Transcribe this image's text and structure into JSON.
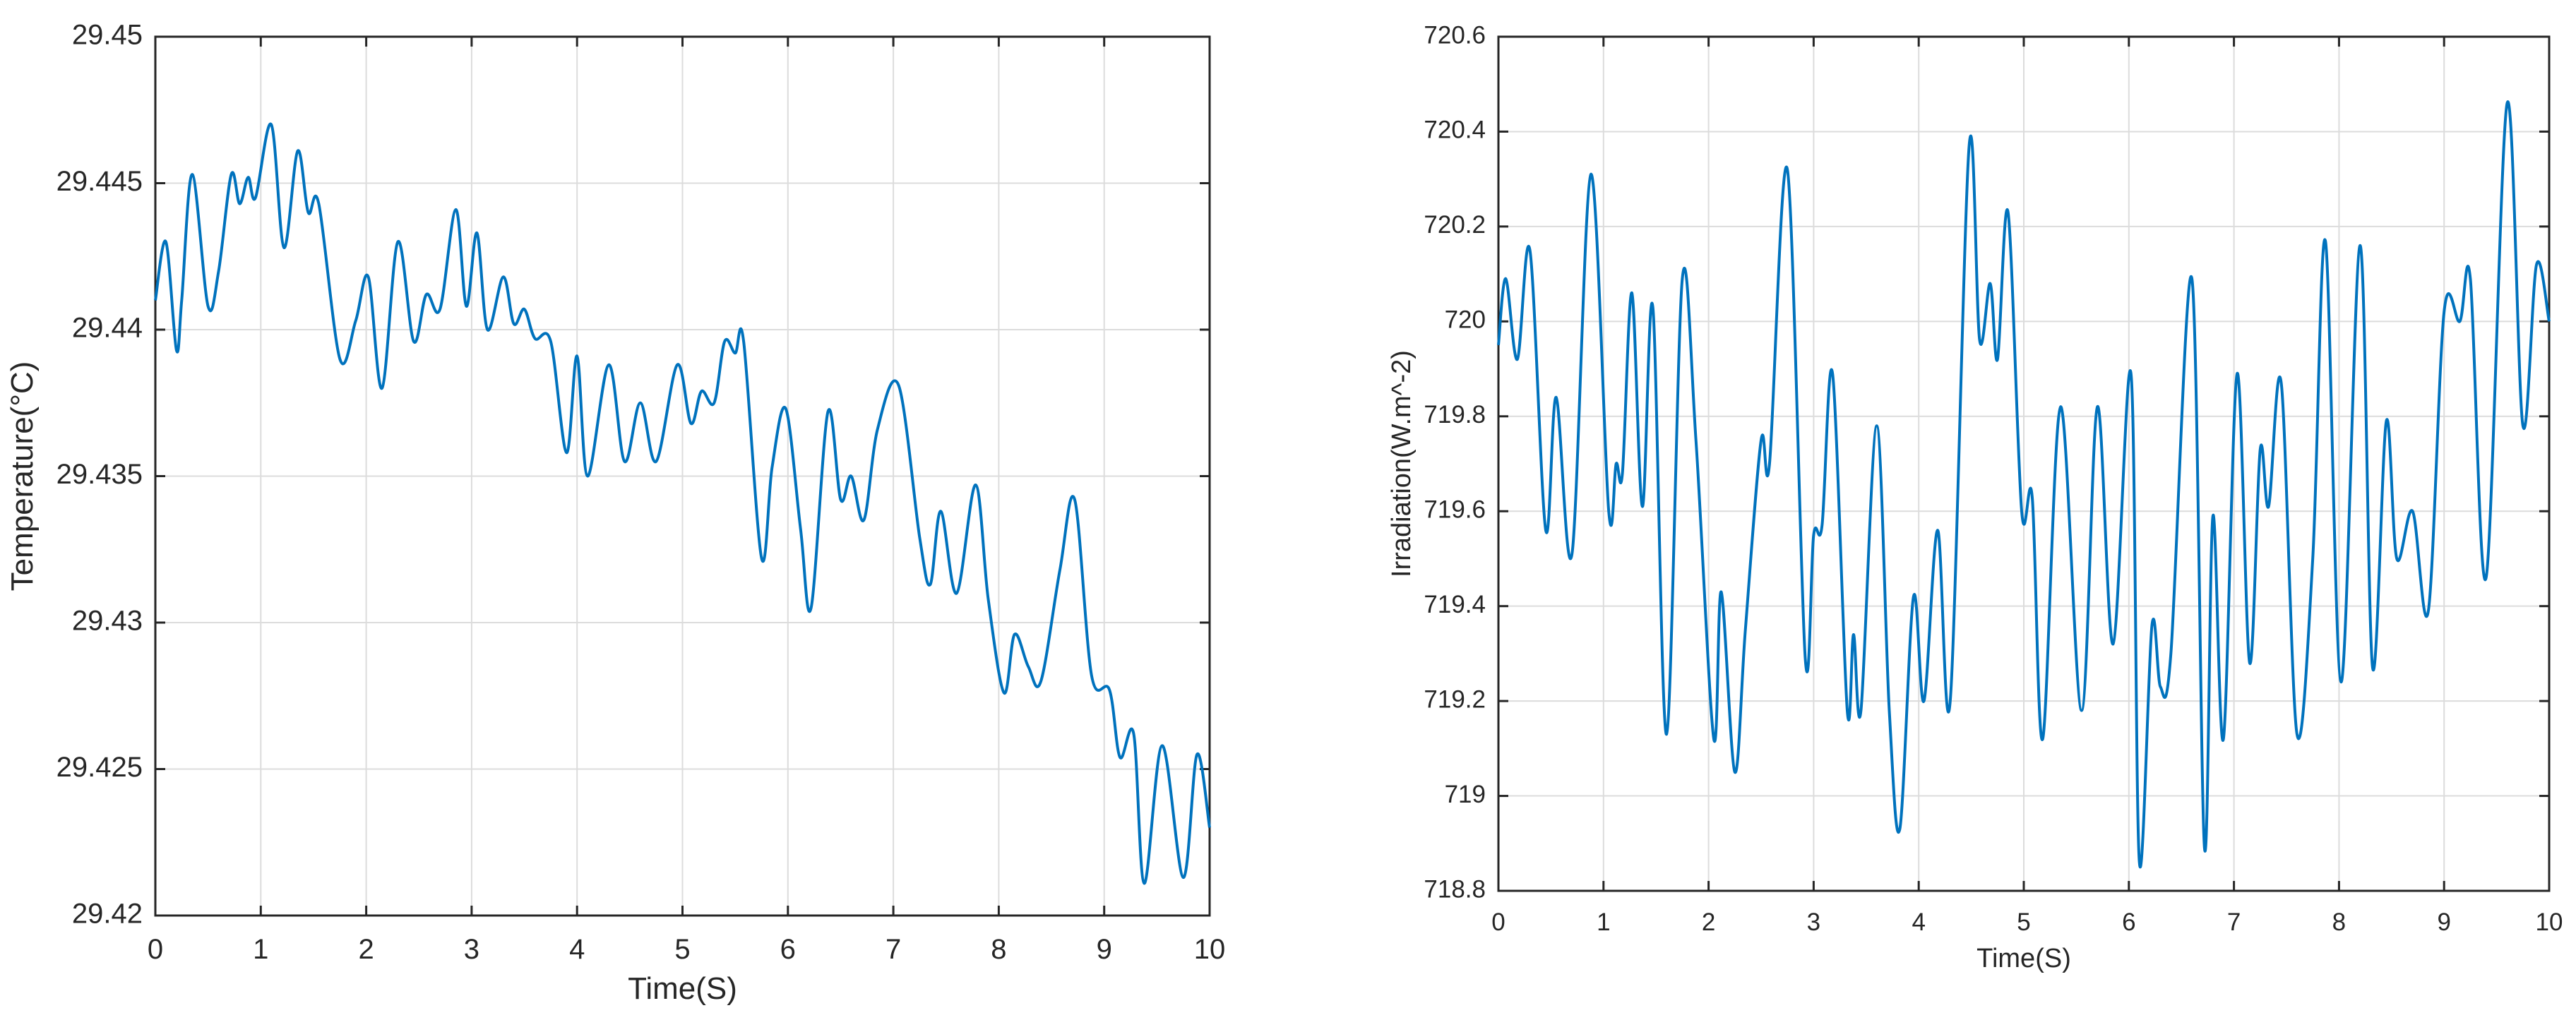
{
  "chart_data": [
    {
      "type": "line",
      "title": "",
      "xlabel": "Time(S)",
      "ylabel": "Temperature(°C)",
      "xlim": [
        0,
        10
      ],
      "ylim": [
        29.42,
        29.45
      ],
      "xticks": [
        0,
        1,
        2,
        3,
        4,
        5,
        6,
        7,
        8,
        9,
        10
      ],
      "xtick_labels": [
        "0",
        "1",
        "2",
        "3",
        "4",
        "5",
        "6",
        "7",
        "8",
        "9",
        "10"
      ],
      "yticks": [
        29.42,
        29.425,
        29.43,
        29.435,
        29.44,
        29.445,
        29.45
      ],
      "ytick_labels": [
        "29.42",
        "29.425",
        "29.43",
        "29.435",
        "29.44",
        "29.445",
        "29.45"
      ],
      "grid": true,
      "line_color": "#0072BD",
      "series": [
        {
          "x": [
            0.0,
            0.1,
            0.2,
            0.25,
            0.35,
            0.5,
            0.6,
            0.72,
            0.8,
            0.88,
            0.95,
            1.1,
            1.22,
            1.35,
            1.45,
            1.55,
            1.75,
            1.9,
            2.02,
            2.15,
            2.3,
            2.45,
            2.57,
            2.7,
            2.85,
            2.95,
            3.05,
            3.15,
            3.3,
            3.4,
            3.5,
            3.6,
            3.75,
            3.9,
            4.0,
            4.1,
            4.3,
            4.45,
            4.6,
            4.75,
            4.95,
            5.08,
            5.18,
            5.3,
            5.4,
            5.5,
            5.58,
            5.75,
            5.85,
            5.98,
            6.12,
            6.22,
            6.38,
            6.5,
            6.6,
            6.72,
            6.85,
            7.05,
            7.25,
            7.35,
            7.45,
            7.6,
            7.78,
            7.9,
            8.05,
            8.15,
            8.28,
            8.4,
            8.58,
            8.72,
            8.88,
            9.05,
            9.15,
            9.28,
            9.38,
            9.55,
            9.75,
            9.88,
            10.0
          ],
          "y": [
            29.441,
            29.443,
            29.4393,
            29.441,
            29.4453,
            29.4408,
            29.442,
            29.4453,
            29.4443,
            29.4452,
            29.4445,
            29.447,
            29.4428,
            29.4461,
            29.444,
            29.4443,
            29.439,
            29.4403,
            29.4418,
            29.438,
            29.443,
            29.4396,
            29.4412,
            29.4407,
            29.4441,
            29.4408,
            29.4433,
            29.44,
            29.4418,
            29.4402,
            29.4407,
            29.4397,
            29.4396,
            29.4358,
            29.4391,
            29.435,
            29.4388,
            29.4355,
            29.4375,
            29.4355,
            29.4388,
            29.4368,
            29.4379,
            29.4375,
            29.4396,
            29.4392,
            29.4396,
            29.4322,
            29.4353,
            29.4373,
            29.4332,
            29.4305,
            29.4372,
            29.4342,
            29.435,
            29.4335,
            29.4366,
            29.4381,
            29.4329,
            29.4313,
            29.4338,
            29.431,
            29.4347,
            29.4308,
            29.4276,
            29.4296,
            29.4285,
            29.428,
            29.4318,
            29.4342,
            29.4282,
            29.4277,
            29.4254,
            29.4262,
            29.4211,
            29.4258,
            29.4213,
            29.4255,
            29.423
          ]
        }
      ]
    },
    {
      "type": "line",
      "title": "",
      "xlabel": "Time(S)",
      "ylabel": "Irradiation(W.m^-2)",
      "xlim": [
        0,
        10
      ],
      "ylim": [
        718.8,
        720.6
      ],
      "xticks": [
        0,
        1,
        2,
        3,
        4,
        5,
        6,
        7,
        8,
        9,
        10
      ],
      "xtick_labels": [
        "0",
        "1",
        "2",
        "3",
        "4",
        "5",
        "6",
        "7",
        "8",
        "9",
        "10"
      ],
      "yticks": [
        718.8,
        719,
        719.2,
        719.4,
        719.6,
        719.8,
        720,
        720.2,
        720.4,
        720.6
      ],
      "ytick_labels": [
        "718.8",
        "719",
        "719.2",
        "719.4",
        "719.6",
        "719.8",
        "720",
        "720.2",
        "720.4",
        "720.6"
      ],
      "grid": true,
      "line_color": "#0072BD",
      "series": [
        {
          "x": [
            0.0,
            0.07,
            0.18,
            0.3,
            0.45,
            0.55,
            0.7,
            0.88,
            1.05,
            1.12,
            1.18,
            1.27,
            1.37,
            1.47,
            1.6,
            1.75,
            1.88,
            2.05,
            2.12,
            2.25,
            2.35,
            2.5,
            2.58,
            2.75,
            2.92,
            3.0,
            3.08,
            3.18,
            3.32,
            3.38,
            3.45,
            3.6,
            3.72,
            3.82,
            3.95,
            4.05,
            4.18,
            4.3,
            4.48,
            4.58,
            4.68,
            4.75,
            4.85,
            4.98,
            5.08,
            5.18,
            5.35,
            5.55,
            5.7,
            5.85,
            6.02,
            6.1,
            6.22,
            6.3,
            6.4,
            6.6,
            6.72,
            6.8,
            6.9,
            7.03,
            7.15,
            7.25,
            7.33,
            7.45,
            7.6,
            7.75,
            7.87,
            8.02,
            8.2,
            8.32,
            8.45,
            8.55,
            8.7,
            8.85,
            9.0,
            9.15,
            9.25,
            9.4,
            9.6,
            9.75,
            9.88,
            10.0
          ],
          "y": [
            719.95,
            720.09,
            719.92,
            720.15,
            719.56,
            719.84,
            719.51,
            720.31,
            719.6,
            719.7,
            719.68,
            720.06,
            719.61,
            720.03,
            719.13,
            720.09,
            719.75,
            719.12,
            719.43,
            719.05,
            719.35,
            719.75,
            719.7,
            720.32,
            719.29,
            719.55,
            719.57,
            719.89,
            719.18,
            719.34,
            719.18,
            719.78,
            719.18,
            718.93,
            719.42,
            719.2,
            719.56,
            719.2,
            720.37,
            719.96,
            720.08,
            719.92,
            720.23,
            719.6,
            719.63,
            719.12,
            719.82,
            719.18,
            719.82,
            719.32,
            719.89,
            718.86,
            719.36,
            719.23,
            719.3,
            720.09,
            718.89,
            719.59,
            719.12,
            719.89,
            719.28,
            719.73,
            719.61,
            719.87,
            719.13,
            719.5,
            720.17,
            719.24,
            720.16,
            719.27,
            719.79,
            719.5,
            719.6,
            719.39,
            720.02,
            720.0,
            720.09,
            719.46,
            720.46,
            719.78,
            720.12,
            720.0
          ]
        }
      ]
    }
  ]
}
